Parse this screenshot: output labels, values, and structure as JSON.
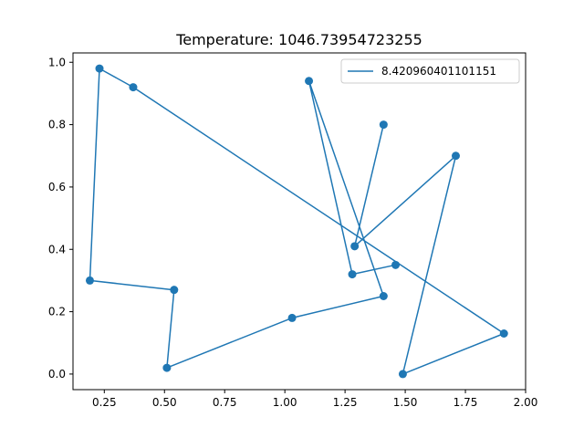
{
  "chart_data": {
    "type": "line",
    "title": "Temperature: 1046.73954723255",
    "xlabel": "",
    "ylabel": "",
    "xlim": [
      0.12,
      2.0
    ],
    "ylim": [
      -0.05,
      1.03
    ],
    "xticks": [
      0.25,
      0.5,
      0.75,
      1.0,
      1.25,
      1.5,
      1.75,
      2.0
    ],
    "xtick_labels": [
      "0.25",
      "0.50",
      "0.75",
      "1.00",
      "1.25",
      "1.50",
      "1.75",
      "2.00"
    ],
    "yticks": [
      0.0,
      0.2,
      0.4,
      0.6,
      0.8,
      1.0
    ],
    "ytick_labels": [
      "0.0",
      "0.2",
      "0.4",
      "0.6",
      "0.8",
      "1.0"
    ],
    "grid": false,
    "legend_position": "upper right",
    "series": [
      {
        "name": "8.420960401101151",
        "color": "#1f77b4",
        "marker": "circle",
        "points": [
          [
            1.41,
            0.8
          ],
          [
            1.29,
            0.41
          ],
          [
            1.71,
            0.7
          ],
          [
            1.49,
            0.0
          ],
          [
            1.91,
            0.13
          ],
          [
            0.37,
            0.92
          ],
          [
            0.23,
            0.98
          ],
          [
            0.19,
            0.3
          ],
          [
            0.54,
            0.27
          ],
          [
            0.51,
            0.02
          ],
          [
            1.03,
            0.18
          ],
          [
            1.41,
            0.25
          ],
          [
            1.1,
            0.94
          ],
          [
            1.28,
            0.32
          ],
          [
            1.46,
            0.35
          ]
        ]
      }
    ]
  }
}
